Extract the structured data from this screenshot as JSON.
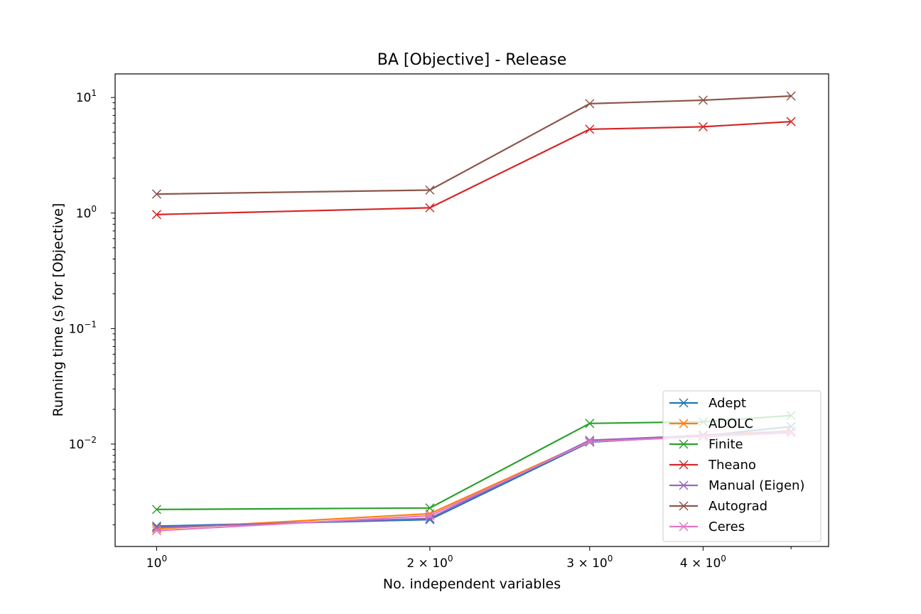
{
  "chart_data": {
    "type": "line",
    "title": "BA [Objective] - Release",
    "xlabel": "No. independent variables",
    "ylabel": "Running time (s) for [Objective]",
    "xscale": "log",
    "yscale": "log",
    "xlim": [
      0.9,
      5.5
    ],
    "ylim": [
      0.0013,
      16
    ],
    "x": [
      1,
      2,
      3,
      4,
      5
    ],
    "x_ticks": [
      {
        "value": 1,
        "base": "10",
        "exp": "0",
        "coef": ""
      },
      {
        "value": 2,
        "base": "10",
        "exp": "0",
        "coef": "2 × "
      },
      {
        "value": 3,
        "base": "10",
        "exp": "0",
        "coef": "3 × "
      },
      {
        "value": 4,
        "base": "10",
        "exp": "0",
        "coef": "4 × "
      }
    ],
    "y_ticks": [
      {
        "value": 0.01,
        "base": "10",
        "exp": "−2"
      },
      {
        "value": 0.1,
        "base": "10",
        "exp": "−1"
      },
      {
        "value": 1,
        "base": "10",
        "exp": "0"
      },
      {
        "value": 10,
        "base": "10",
        "exp": "1"
      }
    ],
    "marker": "x",
    "grid": false,
    "legend_position": "lower-right",
    "series": [
      {
        "name": "Adept",
        "color": "#1f77b4",
        "values": [
          0.00195,
          0.00222,
          0.0104,
          0.0118,
          0.0142
        ]
      },
      {
        "name": "ADOLC",
        "color": "#ff7f0e",
        "values": [
          0.00185,
          0.0025,
          0.0106,
          0.012,
          0.013
        ]
      },
      {
        "name": "Finite",
        "color": "#2ca02c",
        "values": [
          0.00272,
          0.0028,
          0.0151,
          0.0156,
          0.0177
        ]
      },
      {
        "name": "Theano",
        "color": "#d62728",
        "values": [
          0.97,
          1.11,
          5.31,
          5.58,
          6.19
        ]
      },
      {
        "name": "Manual (Eigen)",
        "color": "#9467bd",
        "values": [
          0.0019,
          0.00228,
          0.0108,
          0.0119,
          0.0128
        ]
      },
      {
        "name": "Autograd",
        "color": "#8c564b",
        "values": [
          1.46,
          1.58,
          8.84,
          9.47,
          10.3
        ]
      },
      {
        "name": "Ceres",
        "color": "#e377c2",
        "values": [
          0.00178,
          0.0024,
          0.0105,
          0.0116,
          0.0125
        ]
      }
    ]
  }
}
